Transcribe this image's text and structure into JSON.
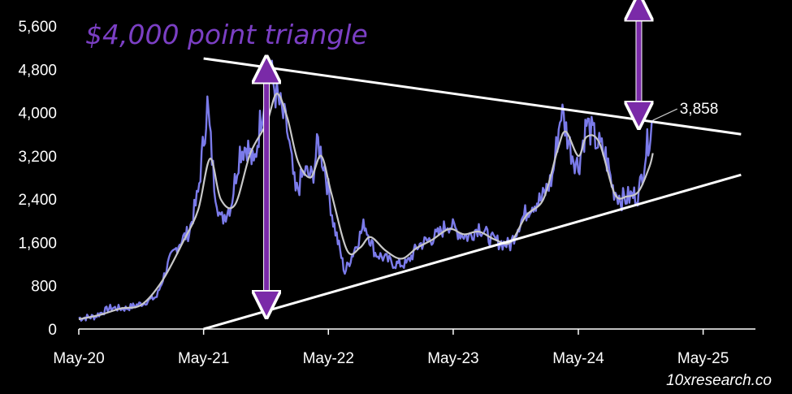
{
  "chart_data": {
    "type": "line",
    "title": "$4,000 point triangle",
    "watermark": "10xresearch.co",
    "x_tick_labels": [
      "May-20",
      "May-21",
      "May-22",
      "May-23",
      "May-24",
      "May-25"
    ],
    "x_tick_dates": [
      "2020-05-01",
      "2021-05-01",
      "2022-05-01",
      "2023-05-01",
      "2024-05-01",
      "2025-05-01"
    ],
    "xlim": [
      "2020-05-01",
      "2025-10-01"
    ],
    "ylim": [
      0,
      5600
    ],
    "y_ticks": [
      0,
      800,
      1600,
      2400,
      3200,
      4000,
      4800,
      5600
    ],
    "y_tick_labels": [
      "0",
      "800",
      "1,600",
      "2,400",
      "3,200",
      "4,000",
      "4,800",
      "5,600"
    ],
    "grid": false,
    "colors": {
      "price": "#7b7bea",
      "moving_average": "#c8c8c8",
      "trendline": "#ffffff",
      "arrow": "#7a2aa8",
      "title": "#7b3fc4"
    },
    "last_value_label": "3,858",
    "series": [
      {
        "key": "price",
        "x": [
          "2020-05-01",
          "2020-06-15",
          "2020-08-01",
          "2020-09-15",
          "2020-11-01",
          "2020-12-15",
          "2021-01-20",
          "2021-02-20",
          "2021-03-20",
          "2021-04-15",
          "2021-05-12",
          "2021-06-01",
          "2021-06-20",
          "2021-07-20",
          "2021-08-15",
          "2021-09-05",
          "2021-09-25",
          "2021-10-20",
          "2021-11-10",
          "2021-12-01",
          "2021-12-31",
          "2022-01-25",
          "2022-02-20",
          "2022-03-15",
          "2022-04-01",
          "2022-04-20",
          "2022-05-15",
          "2022-06-18",
          "2022-07-15",
          "2022-08-15",
          "2022-09-15",
          "2022-10-15",
          "2022-11-10",
          "2022-12-15",
          "2023-01-20",
          "2023-02-20",
          "2023-03-20",
          "2023-04-15",
          "2023-05-15",
          "2023-06-15",
          "2023-07-15",
          "2023-08-20",
          "2023-09-15",
          "2023-10-15",
          "2023-11-10",
          "2023-12-15",
          "2024-01-15",
          "2024-02-15",
          "2024-03-12",
          "2024-04-10",
          "2024-05-01",
          "2024-05-25",
          "2024-06-20",
          "2024-07-20",
          "2024-08-10",
          "2024-09-05",
          "2024-10-01",
          "2024-10-25",
          "2024-11-12",
          "2024-11-25",
          "2024-12-05"
        ],
        "y": [
          200,
          230,
          390,
          380,
          470,
          600,
          1250,
          1600,
          1800,
          2500,
          4150,
          2700,
          2000,
          2300,
          3300,
          3400,
          3000,
          4100,
          4800,
          4300,
          3700,
          2500,
          2900,
          2800,
          3450,
          3000,
          2000,
          1050,
          1450,
          1950,
          1400,
          1300,
          1200,
          1200,
          1550,
          1650,
          1750,
          1950,
          1800,
          1700,
          1900,
          1650,
          1600,
          1550,
          1950,
          2300,
          2400,
          2800,
          4050,
          3300,
          3000,
          3800,
          3500,
          3200,
          2600,
          2400,
          2450,
          2500,
          3200,
          3600,
          3858
        ]
      },
      {
        "key": "moving_average",
        "x": [
          "2020-05-01",
          "2020-07-01",
          "2020-09-01",
          "2020-11-01",
          "2021-01-01",
          "2021-03-01",
          "2021-04-15",
          "2021-05-20",
          "2021-06-20",
          "2021-08-01",
          "2021-09-15",
          "2021-11-01",
          "2021-12-01",
          "2022-01-01",
          "2022-02-01",
          "2022-03-10",
          "2022-04-10",
          "2022-05-10",
          "2022-06-25",
          "2022-08-01",
          "2022-09-01",
          "2022-10-15",
          "2022-12-01",
          "2023-01-15",
          "2023-03-01",
          "2023-04-20",
          "2023-06-01",
          "2023-07-15",
          "2023-09-01",
          "2023-10-15",
          "2023-12-01",
          "2024-01-20",
          "2024-03-01",
          "2024-03-25",
          "2024-05-01",
          "2024-05-25",
          "2024-07-01",
          "2024-08-15",
          "2024-09-20",
          "2024-10-25",
          "2024-11-25",
          "2024-12-05"
        ],
        "y": [
          180,
          260,
          380,
          450,
          900,
          1600,
          2200,
          3150,
          2400,
          2300,
          3250,
          3800,
          4350,
          3900,
          3100,
          2800,
          3200,
          2500,
          1450,
          1500,
          1700,
          1450,
          1300,
          1500,
          1650,
          1850,
          1750,
          1800,
          1650,
          1600,
          2100,
          2400,
          3300,
          3650,
          3200,
          3550,
          3450,
          2500,
          2450,
          2550,
          3000,
          3250
        ]
      }
    ],
    "trendlines": [
      {
        "x": [
          "2021-05-01",
          "2025-08-20"
        ],
        "y": [
          5000,
          3600
        ]
      },
      {
        "x": [
          "2021-05-01",
          "2025-08-20"
        ],
        "y": [
          0,
          2850
        ]
      }
    ],
    "arrows": [
      {
        "x": "2021-11-01",
        "y": [
          450,
          4800
        ]
      },
      {
        "x": "2024-10-25",
        "y": [
          3950,
          5950
        ]
      }
    ]
  }
}
